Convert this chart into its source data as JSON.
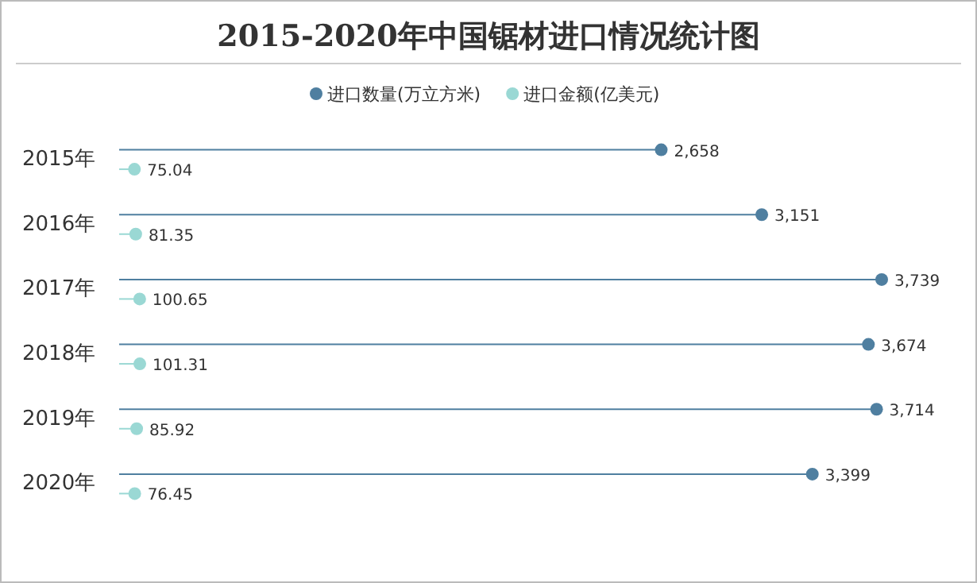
{
  "chart_data": {
    "type": "lollipop",
    "orientation": "horizontal",
    "title": "2015-2020年中国锯材进口情况统计图",
    "categories": [
      "2015年",
      "2016年",
      "2017年",
      "2018年",
      "2019年",
      "2020年"
    ],
    "series": [
      {
        "name": "进口数量(万立方米)",
        "color": "#4f7fa0",
        "values": [
          2658,
          3151,
          3739,
          3674,
          3714,
          3399
        ],
        "value_labels": [
          "2,658",
          "3,151",
          "3,739",
          "3,674",
          "3,714",
          "3,399"
        ]
      },
      {
        "name": "进口金额(亿美元)",
        "color": "#9ad8d4",
        "values": [
          75.04,
          81.35,
          100.65,
          101.31,
          85.92,
          76.45
        ],
        "value_labels": [
          "75.04",
          "81.35",
          "100.65",
          "101.31",
          "85.92",
          "76.45"
        ]
      }
    ],
    "legend": "top right",
    "marker": "circle"
  }
}
